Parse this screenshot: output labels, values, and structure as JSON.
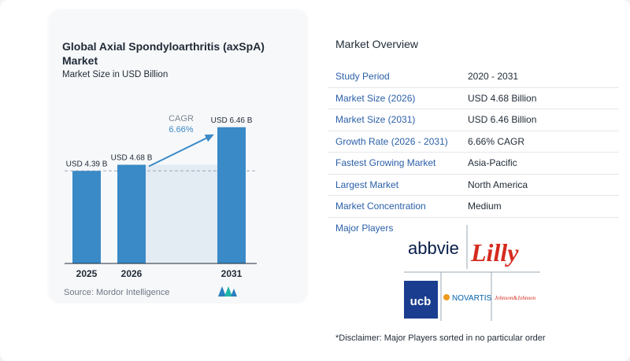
{
  "chart": {
    "title": "Global Axial Spondyloarthritis (axSpA) Market",
    "subtitle": "Market Size in USD Billion",
    "source": "Source:  Mordor Intelligence",
    "cagr_label": "CAGR",
    "cagr_value": "6.66%"
  },
  "chart_data": {
    "type": "bar",
    "categories": [
      "2025",
      "2026",
      "2031"
    ],
    "values": [
      4.39,
      4.68,
      6.46
    ],
    "data_labels": [
      "USD 4.39 B",
      "USD 4.68 B",
      "USD 6.46 B"
    ],
    "title": "Global Axial Spondyloarthritis (axSpA) Market",
    "ylabel": "Market Size in USD Billion",
    "ylim": [
      0,
      6.6
    ],
    "bar_color": "#3a8ac7",
    "grid": false,
    "annotation": "CAGR 6.66%"
  },
  "overview": {
    "title": "Market Overview",
    "rows": [
      {
        "key": "Study Period",
        "value": "2020 - 2031"
      },
      {
        "key": "Market Size (2026)",
        "value": "USD 4.68 Billion"
      },
      {
        "key": "Market Size (2031)",
        "value": "USD 6.46 Billion"
      },
      {
        "key": "Growth Rate (2026 - 2031)",
        "value": "6.66% CAGR"
      },
      {
        "key": "Fastest Growing Market",
        "value": "Asia-Pacific"
      },
      {
        "key": "Largest Market",
        "value": "North America"
      },
      {
        "key": "Market Concentration",
        "value": "Medium"
      }
    ],
    "players_label": "Major Players",
    "players": [
      "abbvie",
      "Lilly",
      "ucb",
      "NOVARTIS",
      "Johnson&Johnson"
    ],
    "disclaimer": "*Disclaimer: Major Players sorted in no particular order"
  },
  "colors": {
    "bar": "#3a8ac7",
    "accent_text": "#2a5fa8",
    "abbvie": "#071d49",
    "lilly": "#d52b1e",
    "ucb": "#1a3d8f",
    "novartis": "#0460a9"
  }
}
